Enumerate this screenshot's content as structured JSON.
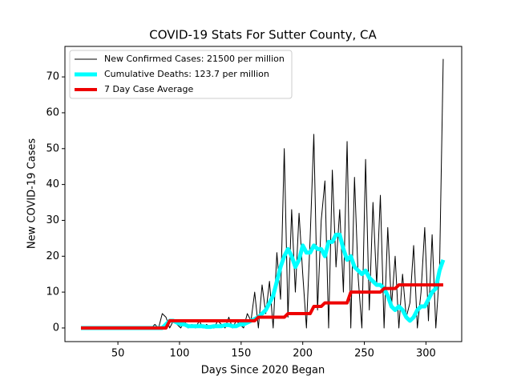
{
  "chart_data": {
    "type": "line",
    "title": "COVID-19 Stats For Sutter County, CA",
    "x_label": "Days Since 2020 Began",
    "y_label": "New COVID-19 Cases",
    "x": [
      20,
      23,
      26,
      29,
      32,
      35,
      38,
      41,
      44,
      47,
      50,
      53,
      56,
      59,
      62,
      65,
      68,
      71,
      74,
      77,
      80,
      83,
      86,
      89,
      92,
      95,
      98,
      101,
      104,
      107,
      110,
      113,
      116,
      119,
      122,
      125,
      128,
      131,
      134,
      137,
      140,
      143,
      146,
      149,
      152,
      155,
      158,
      161,
      164,
      167,
      170,
      173,
      176,
      179,
      182,
      185,
      188,
      191,
      194,
      197,
      200,
      203,
      206,
      209,
      212,
      215,
      218,
      221,
      224,
      227,
      230,
      233,
      236,
      239,
      242,
      245,
      248,
      251,
      254,
      257,
      260,
      263,
      266,
      269,
      272,
      275,
      278,
      281,
      284,
      287,
      290,
      293,
      296,
      299,
      302,
      305,
      308,
      311,
      314
    ],
    "series": [
      {
        "name": "New Confirmed Cases: 21500 per million",
        "color": "#000000",
        "width": 1,
        "values": [
          0,
          0,
          0,
          0,
          0,
          0,
          0,
          0,
          0,
          0,
          0,
          0,
          0,
          0,
          0,
          0,
          0,
          0,
          0,
          0,
          1,
          0,
          4,
          3,
          0,
          2,
          1,
          0,
          2,
          0,
          1,
          0,
          2,
          0,
          1,
          0,
          0,
          2,
          1,
          0,
          3,
          0,
          2,
          1,
          0,
          4,
          2,
          10,
          0,
          12,
          4,
          13,
          0,
          21,
          8,
          50,
          3,
          33,
          10,
          32,
          15,
          0,
          25,
          54,
          5,
          30,
          41,
          0,
          44,
          17,
          33,
          10,
          52,
          0,
          42,
          14,
          0,
          47,
          5,
          35,
          12,
          37,
          0,
          28,
          6,
          20,
          0,
          15,
          3,
          7,
          23,
          0,
          10,
          28,
          2,
          26,
          0,
          16,
          75
        ]
      },
      {
        "name": "Cumulative Deaths: 123.7 per million",
        "color": "#00ffff",
        "width": 5,
        "values": [
          0,
          0,
          0,
          0,
          0,
          0,
          0,
          0,
          0,
          0,
          0,
          0,
          0,
          0,
          0,
          0,
          0,
          0,
          0,
          0,
          0,
          0,
          0,
          1,
          2,
          2,
          1.5,
          1,
          1,
          0.5,
          0.5,
          0.5,
          0.5,
          0.5,
          0.3,
          0.3,
          0.5,
          0.5,
          0.5,
          0.8,
          0.8,
          0.5,
          0.5,
          1,
          1,
          1.5,
          2,
          2.5,
          3,
          4,
          5,
          7,
          9,
          13,
          17,
          20,
          22,
          20,
          17,
          19,
          23,
          21,
          21,
          23,
          22,
          22,
          20,
          24,
          24,
          26,
          26,
          22,
          19,
          20,
          17,
          16,
          15,
          16,
          14,
          13,
          12,
          12,
          11,
          9,
          6,
          5,
          6,
          5,
          3,
          2,
          3,
          5,
          6,
          6,
          8,
          10,
          11,
          16,
          19
        ]
      },
      {
        "name": "7 Day Case Average",
        "color": "#ee0000",
        "width": 4,
        "values": [
          0,
          0,
          0,
          0,
          0,
          0,
          0,
          0,
          0,
          0,
          0,
          0,
          0,
          0,
          0,
          0,
          0,
          0,
          0,
          0,
          0,
          0,
          0,
          0,
          2,
          2,
          2,
          2,
          2,
          2,
          2,
          2,
          2,
          2,
          2,
          2,
          2,
          2,
          2,
          2,
          2,
          2,
          2,
          2,
          2,
          2,
          2,
          2,
          3,
          3,
          3,
          3,
          3,
          3,
          3,
          3,
          4,
          4,
          4,
          4,
          4,
          4,
          4,
          6,
          6,
          6,
          7,
          7,
          7,
          7,
          7,
          7,
          7,
          10,
          10,
          10,
          10,
          10,
          10,
          10,
          10,
          10,
          11,
          11,
          11,
          11,
          12,
          12,
          12,
          12,
          12,
          12,
          12,
          12,
          12,
          12,
          12,
          12,
          12
        ]
      }
    ],
    "xlim": [
      7,
      329
    ],
    "ylim": [
      -3.8,
      78.5
    ],
    "xticks": [
      50,
      100,
      150,
      200,
      250,
      300
    ],
    "yticks": [
      0,
      10,
      20,
      30,
      40,
      50,
      60,
      70
    ],
    "legend": "upper left"
  }
}
